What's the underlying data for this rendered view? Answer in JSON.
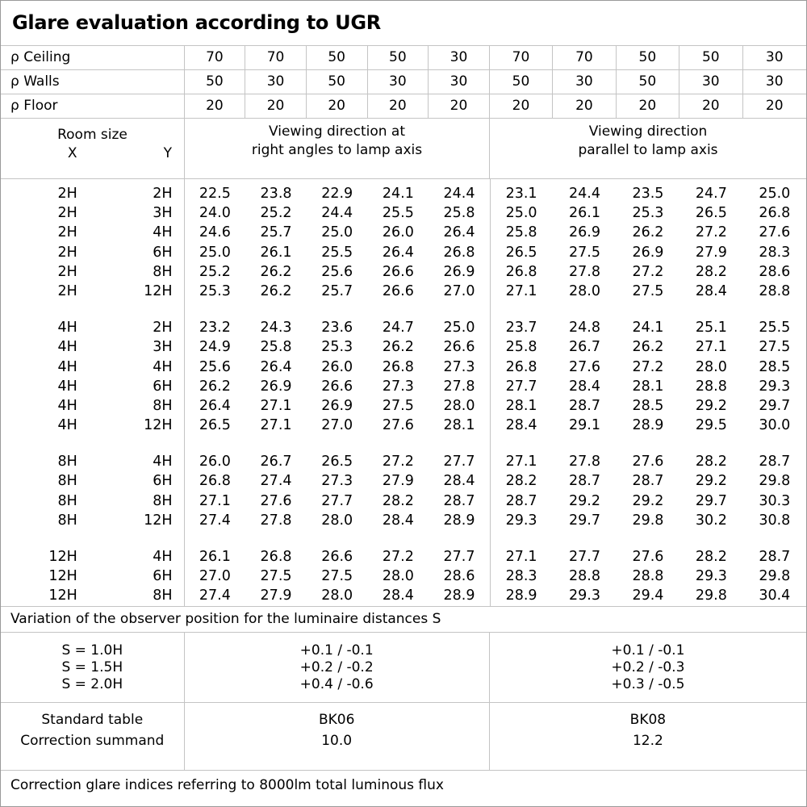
{
  "title": "Glare evaluation according to UGR",
  "colors": {
    "grid_line": "#c4c4c4",
    "outer_border": "#9a9a9a",
    "text": "#000000",
    "background": "#ffffff"
  },
  "reflectance": {
    "rows": [
      {
        "label": "ρ Ceiling",
        "values": [
          "70",
          "70",
          "50",
          "50",
          "30",
          "70",
          "70",
          "50",
          "50",
          "30"
        ]
      },
      {
        "label": "ρ Walls",
        "values": [
          "50",
          "30",
          "50",
          "30",
          "30",
          "50",
          "30",
          "50",
          "30",
          "30"
        ]
      },
      {
        "label": "ρ Floor",
        "values": [
          "20",
          "20",
          "20",
          "20",
          "20",
          "20",
          "20",
          "20",
          "20",
          "20"
        ]
      }
    ]
  },
  "room_header": {
    "label": "Room size",
    "x": "X",
    "y": "Y",
    "group1_line1": "Viewing direction at",
    "group1_line2": "right angles to lamp axis",
    "group2_line1": "Viewing direction",
    "group2_line2": "parallel to lamp axis"
  },
  "ugr_blocks": [
    {
      "rows": [
        {
          "x": "2H",
          "y": "2H",
          "left": [
            "22.5",
            "23.8",
            "22.9",
            "24.1",
            "24.4"
          ],
          "right": [
            "23.1",
            "24.4",
            "23.5",
            "24.7",
            "25.0"
          ]
        },
        {
          "x": "2H",
          "y": "3H",
          "left": [
            "24.0",
            "25.2",
            "24.4",
            "25.5",
            "25.8"
          ],
          "right": [
            "25.0",
            "26.1",
            "25.3",
            "26.5",
            "26.8"
          ]
        },
        {
          "x": "2H",
          "y": "4H",
          "left": [
            "24.6",
            "25.7",
            "25.0",
            "26.0",
            "26.4"
          ],
          "right": [
            "25.8",
            "26.9",
            "26.2",
            "27.2",
            "27.6"
          ]
        },
        {
          "x": "2H",
          "y": "6H",
          "left": [
            "25.0",
            "26.1",
            "25.5",
            "26.4",
            "26.8"
          ],
          "right": [
            "26.5",
            "27.5",
            "26.9",
            "27.9",
            "28.3"
          ]
        },
        {
          "x": "2H",
          "y": "8H",
          "left": [
            "25.2",
            "26.2",
            "25.6",
            "26.6",
            "26.9"
          ],
          "right": [
            "26.8",
            "27.8",
            "27.2",
            "28.2",
            "28.6"
          ]
        },
        {
          "x": "2H",
          "y": "12H",
          "left": [
            "25.3",
            "26.2",
            "25.7",
            "26.6",
            "27.0"
          ],
          "right": [
            "27.1",
            "28.0",
            "27.5",
            "28.4",
            "28.8"
          ]
        }
      ]
    },
    {
      "rows": [
        {
          "x": "4H",
          "y": "2H",
          "left": [
            "23.2",
            "24.3",
            "23.6",
            "24.7",
            "25.0"
          ],
          "right": [
            "23.7",
            "24.8",
            "24.1",
            "25.1",
            "25.5"
          ]
        },
        {
          "x": "4H",
          "y": "3H",
          "left": [
            "24.9",
            "25.8",
            "25.3",
            "26.2",
            "26.6"
          ],
          "right": [
            "25.8",
            "26.7",
            "26.2",
            "27.1",
            "27.5"
          ]
        },
        {
          "x": "4H",
          "y": "4H",
          "left": [
            "25.6",
            "26.4",
            "26.0",
            "26.8",
            "27.3"
          ],
          "right": [
            "26.8",
            "27.6",
            "27.2",
            "28.0",
            "28.5"
          ]
        },
        {
          "x": "4H",
          "y": "6H",
          "left": [
            "26.2",
            "26.9",
            "26.6",
            "27.3",
            "27.8"
          ],
          "right": [
            "27.7",
            "28.4",
            "28.1",
            "28.8",
            "29.3"
          ]
        },
        {
          "x": "4H",
          "y": "8H",
          "left": [
            "26.4",
            "27.1",
            "26.9",
            "27.5",
            "28.0"
          ],
          "right": [
            "28.1",
            "28.7",
            "28.5",
            "29.2",
            "29.7"
          ]
        },
        {
          "x": "4H",
          "y": "12H",
          "left": [
            "26.5",
            "27.1",
            "27.0",
            "27.6",
            "28.1"
          ],
          "right": [
            "28.4",
            "29.1",
            "28.9",
            "29.5",
            "30.0"
          ]
        }
      ]
    },
    {
      "rows": [
        {
          "x": "8H",
          "y": "4H",
          "left": [
            "26.0",
            "26.7",
            "26.5",
            "27.2",
            "27.7"
          ],
          "right": [
            "27.1",
            "27.8",
            "27.6",
            "28.2",
            "28.7"
          ]
        },
        {
          "x": "8H",
          "y": "6H",
          "left": [
            "26.8",
            "27.4",
            "27.3",
            "27.9",
            "28.4"
          ],
          "right": [
            "28.2",
            "28.7",
            "28.7",
            "29.2",
            "29.8"
          ]
        },
        {
          "x": "8H",
          "y": "8H",
          "left": [
            "27.1",
            "27.6",
            "27.7",
            "28.2",
            "28.7"
          ],
          "right": [
            "28.7",
            "29.2",
            "29.2",
            "29.7",
            "30.3"
          ]
        },
        {
          "x": "8H",
          "y": "12H",
          "left": [
            "27.4",
            "27.8",
            "28.0",
            "28.4",
            "28.9"
          ],
          "right": [
            "29.3",
            "29.7",
            "29.8",
            "30.2",
            "30.8"
          ]
        }
      ]
    },
    {
      "rows": [
        {
          "x": "12H",
          "y": "4H",
          "left": [
            "26.1",
            "26.8",
            "26.6",
            "27.2",
            "27.7"
          ],
          "right": [
            "27.1",
            "27.7",
            "27.6",
            "28.2",
            "28.7"
          ]
        },
        {
          "x": "12H",
          "y": "6H",
          "left": [
            "27.0",
            "27.5",
            "27.5",
            "28.0",
            "28.6"
          ],
          "right": [
            "28.3",
            "28.8",
            "28.8",
            "29.3",
            "29.8"
          ]
        },
        {
          "x": "12H",
          "y": "8H",
          "left": [
            "27.4",
            "27.9",
            "28.0",
            "28.4",
            "28.9"
          ],
          "right": [
            "28.9",
            "29.3",
            "29.4",
            "29.8",
            "30.4"
          ]
        }
      ]
    }
  ],
  "variation_note": "Variation of the observer position for the luminaire distances S",
  "s_variation": {
    "labels": [
      "S = 1.0H",
      "S = 1.5H",
      "S = 2.0H"
    ],
    "right_angles": [
      "+0.1 / -0.1",
      "+0.2 / -0.2",
      "+0.4 / -0.6"
    ],
    "parallel": [
      "+0.1 / -0.1",
      "+0.2 / -0.3",
      "+0.3 / -0.5"
    ]
  },
  "summary": {
    "rows": [
      {
        "label": "Standard table",
        "right_angles": "BK06",
        "parallel": "BK08"
      },
      {
        "label": "Correction summand",
        "right_angles": "10.0",
        "parallel": "12.2"
      }
    ]
  },
  "footer_note": "Correction glare indices referring to 8000lm total luminous flux"
}
